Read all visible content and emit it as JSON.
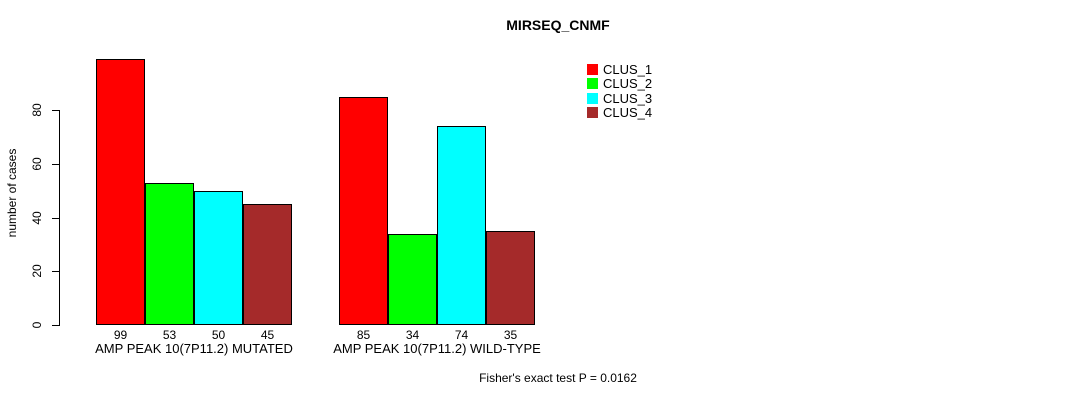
{
  "title": "MIRSEQ_CNMF",
  "footnote": "Fisher's exact test P = 0.0162",
  "chart_data": {
    "type": "bar",
    "title": "MIRSEQ_CNMF",
    "xlabel": "",
    "ylabel": "number of cases",
    "categories": [
      "AMP PEAK 10(7P11.2) MUTATED",
      "AMP PEAK 10(7P11.2) WILD-TYPE"
    ],
    "series": [
      {
        "name": "CLUS_1",
        "color": "#FF0000",
        "values": [
          99,
          85
        ]
      },
      {
        "name": "CLUS_2",
        "color": "#00FF00",
        "values": [
          53,
          34
        ]
      },
      {
        "name": "CLUS_3",
        "color": "#00FFFF",
        "values": [
          50,
          74
        ]
      },
      {
        "name": "CLUS_4",
        "color": "#A52A2A",
        "values": [
          45,
          35
        ]
      }
    ],
    "yticks": [
      0,
      20,
      40,
      60,
      80
    ],
    "axis_range": [
      0,
      80
    ],
    "grid": false,
    "legend_position": "top-right",
    "value_labels": true,
    "annotation": "Fisher's exact test P = 0.0162",
    "background": "#FFFFFF",
    "axis_color": "#000000"
  }
}
